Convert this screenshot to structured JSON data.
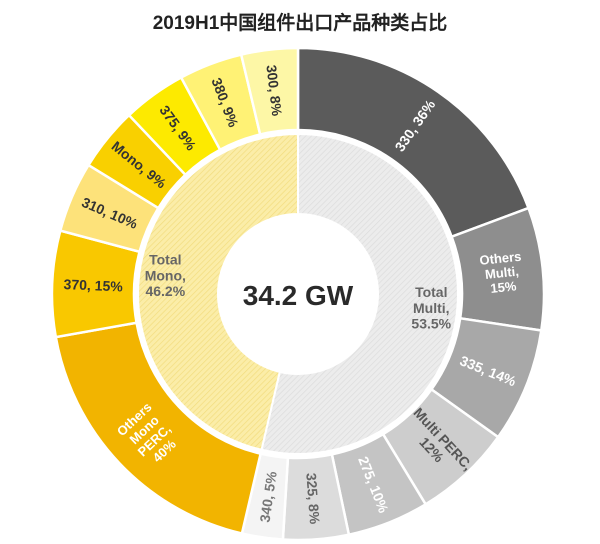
{
  "chart_data": {
    "type": "pie",
    "subtype": "nested-donut",
    "title": "2019H1中国组件出口产品种类占比",
    "center_label": "34.2 GW",
    "inner_ring": [
      {
        "label": [
          "Total",
          "Multi,",
          "53.5%"
        ],
        "value": 53.5,
        "color": "#e9e9e9"
      },
      {
        "label": [
          "Total",
          "Mono,",
          "46.2%"
        ],
        "value": 46.2,
        "color": "#faeaa0"
      }
    ],
    "outer_ring": [
      {
        "label": [
          "330, 36%"
        ],
        "value": 36,
        "color": "#5b5b5b",
        "text_color": "#ffffff"
      },
      {
        "label": [
          "Others",
          "Multi,",
          "15%"
        ],
        "value": 15,
        "color": "#8e8e8e",
        "text_color": "#ffffff"
      },
      {
        "label": [
          "335, 14%"
        ],
        "value": 14,
        "color": "#a8a8a8",
        "text_color": "#ffffff"
      },
      {
        "label": [
          "Multi PERC,",
          "12%"
        ],
        "value": 12,
        "color": "#cdcdcd",
        "text_color": "#555555"
      },
      {
        "label": [
          "275, 10%"
        ],
        "value": 10,
        "color": "#c4c4c4",
        "text_color": "#ffffff"
      },
      {
        "label": [
          "325, 8%"
        ],
        "value": 8,
        "color": "#dcdcdc",
        "text_color": "#666666"
      },
      {
        "label": [
          "340, 5%"
        ],
        "value": 5,
        "color": "#f4f4f4",
        "text_color": "#777777"
      },
      {
        "label": [
          "Others",
          "Mono",
          "PERC,",
          "40%"
        ],
        "value": 40,
        "color": "#f2b400",
        "text_color": "#ffffff"
      },
      {
        "label": [
          "370, 15%"
        ],
        "value": 15,
        "color": "#f9c800",
        "text_color": "#333333"
      },
      {
        "label": [
          "310, 10%"
        ],
        "value": 10,
        "color": "#fde27a",
        "text_color": "#333333"
      },
      {
        "label": [
          "Mono, 9%"
        ],
        "value": 9,
        "color": "#f9d000",
        "text_color": "#333333"
      },
      {
        "label": [
          "375, 9%"
        ],
        "value": 9,
        "color": "#fdea00",
        "text_color": "#333333"
      },
      {
        "label": [
          "380, 9%"
        ],
        "value": 9,
        "color": "#fff275",
        "text_color": "#333333"
      },
      {
        "label": [
          "300, 8%"
        ],
        "value": 8,
        "color": "#fdf7a6",
        "text_color": "#333333"
      }
    ]
  }
}
